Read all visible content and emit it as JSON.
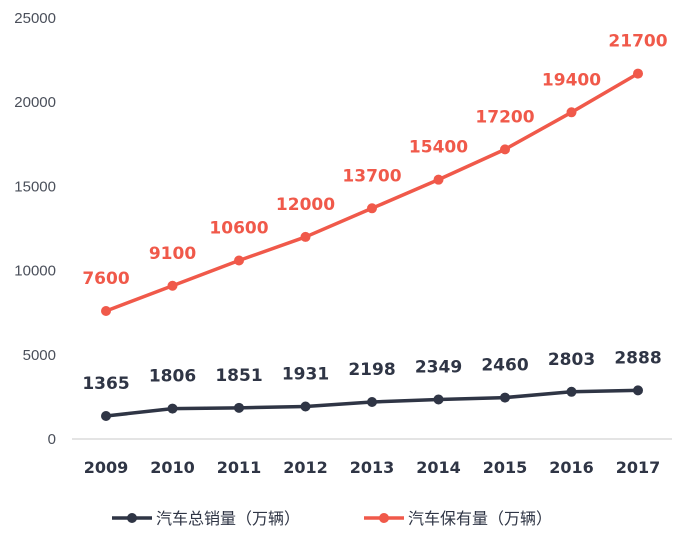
{
  "chart_data": {
    "type": "line",
    "categories": [
      "2009",
      "2010",
      "2011",
      "2012",
      "2013",
      "2014",
      "2015",
      "2016",
      "2017"
    ],
    "series": [
      {
        "name": "汽车总销量（万辆）",
        "color": "#2f3545",
        "values": [
          1365,
          1806,
          1851,
          1931,
          2198,
          2349,
          2460,
          2803,
          2888
        ],
        "labels": [
          "1365",
          "1806",
          "1851",
          "1931",
          "2198",
          "2349",
          "2460",
          "2803",
          "2888"
        ]
      },
      {
        "name": "汽车保有量（万辆）",
        "color": "#f0594a",
        "values": [
          7600,
          9100,
          10600,
          12000,
          13700,
          15400,
          17200,
          19400,
          21700
        ],
        "labels": [
          "7600",
          "9100",
          "10600",
          "12000",
          "13700",
          "15400",
          "17200",
          "19400",
          "21700"
        ]
      }
    ],
    "yticks": [
      "0",
      "5000",
      "10000",
      "15000",
      "20000",
      "25000"
    ],
    "ylim": [
      0,
      25000
    ],
    "grid": false,
    "legend_position": "bottom",
    "title": "",
    "xlabel": "",
    "ylabel": ""
  }
}
